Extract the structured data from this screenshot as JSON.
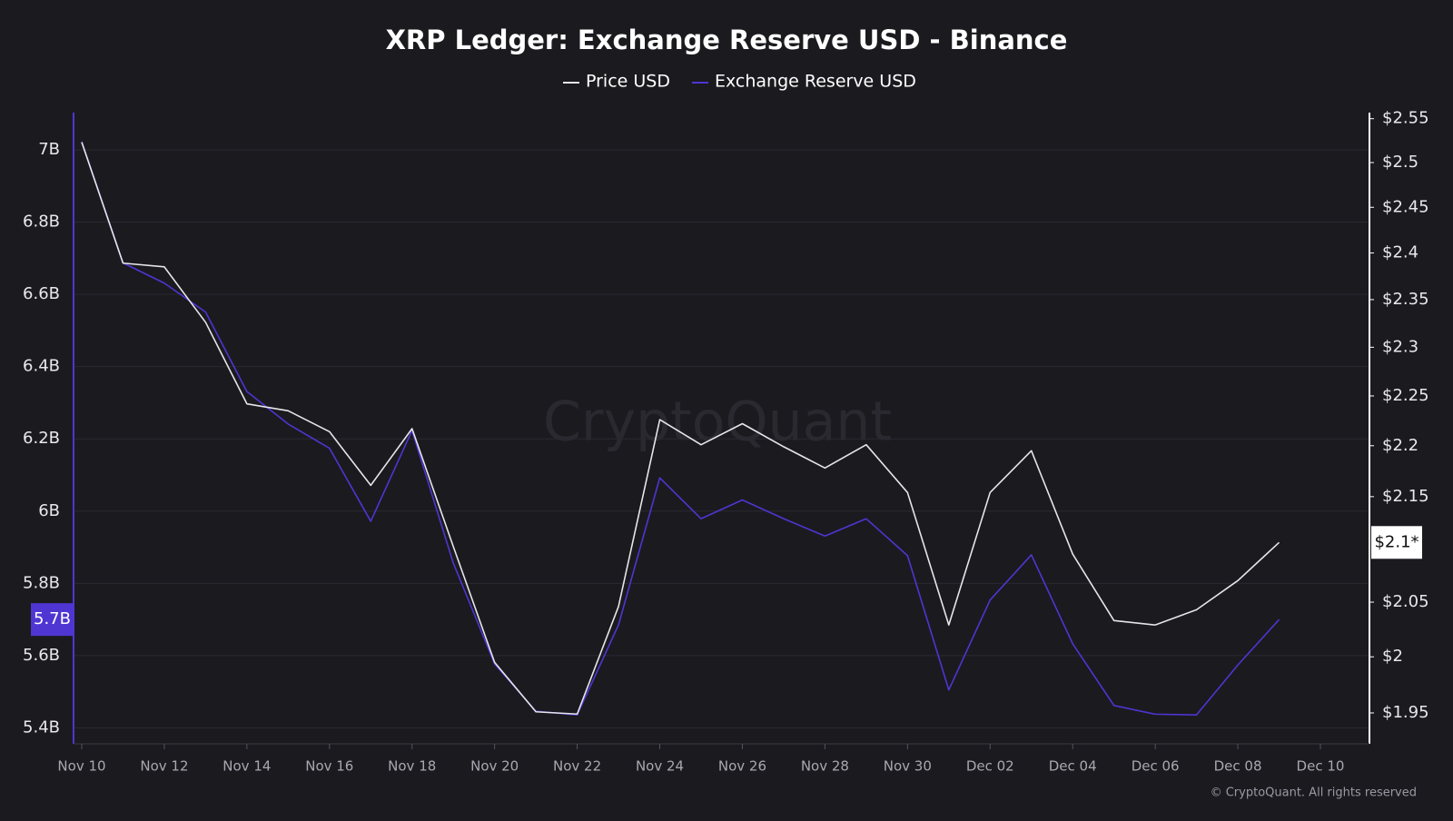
{
  "chart_data": {
    "type": "line",
    "title": "XRP Ledger: Exchange Reserve USD - Binance",
    "watermark": "CryptoQuant",
    "copyright": "© CryptoQuant. All rights reserved",
    "categories": [
      "Nov 10",
      null,
      "Nov 12",
      null,
      "Nov 14",
      null,
      "Nov 16",
      null,
      "Nov 18",
      null,
      "Nov 20",
      null,
      "Nov 22",
      null,
      "Nov 24",
      null,
      "Nov 26",
      null,
      "Nov 28",
      null,
      "Nov 30",
      null,
      "Dec 02",
      null,
      "Dec 04",
      null,
      "Dec 06",
      null,
      "Dec 08",
      null,
      "Dec 10"
    ],
    "series": [
      {
        "name": "Price USD",
        "color": "#e6e6ea",
        "axis": "y2",
        "last_label": "$2.1*",
        "values": [
          2.523,
          2.389,
          2.385,
          2.326,
          2.242,
          2.235,
          2.214,
          2.161,
          2.217,
          2.102,
          1.995,
          1.951,
          1.949,
          2.046,
          2.226,
          2.201,
          2.222,
          2.199,
          2.178,
          2.201,
          2.154,
          2.029,
          2.154,
          2.195,
          2.095,
          2.033,
          2.029,
          2.043,
          2.07,
          2.106,
          null
        ]
      },
      {
        "name": "Exchange Reserve USD",
        "color": "#4f35d2",
        "last_label": "5.7B",
        "values": [
          7.023,
          6.687,
          6.631,
          6.551,
          6.331,
          6.241,
          6.174,
          5.972,
          6.223,
          5.856,
          5.577,
          5.446,
          5.436,
          5.685,
          6.092,
          5.979,
          6.031,
          5.979,
          5.931,
          5.979,
          5.877,
          5.505,
          5.754,
          5.879,
          5.633,
          5.462,
          5.438,
          5.436,
          5.574,
          5.7,
          null
        ]
      }
    ],
    "ylim": [
      5.356,
      7.103
    ],
    "yticks": [
      {
        "value": 5.4,
        "label": "5.4B"
      },
      {
        "value": 5.6,
        "label": "5.6B"
      },
      {
        "value": 5.8,
        "label": "5.8B"
      },
      {
        "value": 6,
        "label": "6B"
      },
      {
        "value": 6.2,
        "label": "6.2B"
      },
      {
        "value": 6.4,
        "label": "6.4B"
      },
      {
        "value": 6.6,
        "label": "6.6B"
      },
      {
        "value": 6.8,
        "label": "6.8B"
      },
      {
        "value": 7,
        "label": "7B"
      }
    ],
    "y2lim": [
      1.923,
      2.557
    ],
    "y2_log": true,
    "y2ticks": [
      {
        "value": 1.95,
        "label": "$1.95"
      },
      {
        "value": 2,
        "label": "$2"
      },
      {
        "value": 2.05,
        "label": "$2.05"
      },
      {
        "value": 2.15,
        "label": "$2.15"
      },
      {
        "value": 2.2,
        "label": "$2.2"
      },
      {
        "value": 2.25,
        "label": "$2.25"
      },
      {
        "value": 2.3,
        "label": "$2.3"
      },
      {
        "value": 2.35,
        "label": "$2.35"
      },
      {
        "value": 2.4,
        "label": "$2.4"
      },
      {
        "value": 2.45,
        "label": "$2.45"
      },
      {
        "value": 2.5,
        "label": "$2.5"
      },
      {
        "value": 2.55,
        "label": "$2.55"
      }
    ],
    "grid": true
  }
}
